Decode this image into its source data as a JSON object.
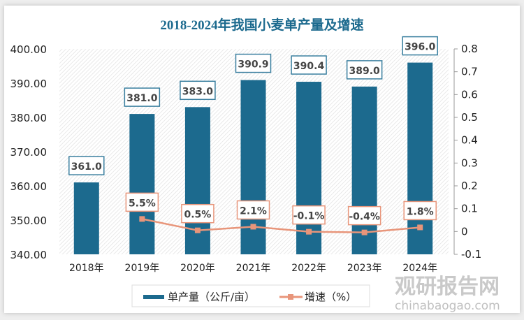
{
  "chart_data": {
    "type": "bar+line",
    "title": "2018-2024年我国小麦单产量及增速",
    "categories": [
      "2018年",
      "2019年",
      "2020年",
      "2021年",
      "2022年",
      "2023年",
      "2024年"
    ],
    "series": [
      {
        "name": "单产量（公斤/亩）",
        "type": "bar",
        "axis": "left",
        "values": [
          361.0,
          381.0,
          383.0,
          390.9,
          390.4,
          389.0,
          396.0
        ],
        "labels": [
          "361.0",
          "381.0",
          "383.0",
          "390.9",
          "390.4",
          "389.0",
          "396.0"
        ],
        "color": "#1c6a8e"
      },
      {
        "name": "增速（%）",
        "type": "line",
        "axis": "right",
        "values": [
          null,
          0.055,
          0.005,
          0.021,
          -0.001,
          -0.004,
          0.018
        ],
        "labels": [
          "",
          "5.5%",
          "0.5%",
          "2.1%",
          "-0.1%",
          "-0.4%",
          "1.8%"
        ],
        "color": "#e8957a"
      }
    ],
    "left_axis": {
      "range": [
        340,
        400
      ],
      "ticks": [
        "340.00",
        "350.00",
        "360.00",
        "370.00",
        "380.00",
        "390.00",
        "400.00"
      ]
    },
    "right_axis": {
      "range": [
        -0.1,
        0.8
      ],
      "ticks": [
        "-0.1",
        "0",
        "0.1",
        "0.2",
        "0.3",
        "0.4",
        "0.5",
        "0.6",
        "0.7",
        "0.8"
      ]
    },
    "legend": "bottom",
    "grid": false,
    "title_color": "#1c6a8e"
  },
  "watermark": {
    "name": "观研报告网",
    "url": "chinabaogao.com"
  }
}
